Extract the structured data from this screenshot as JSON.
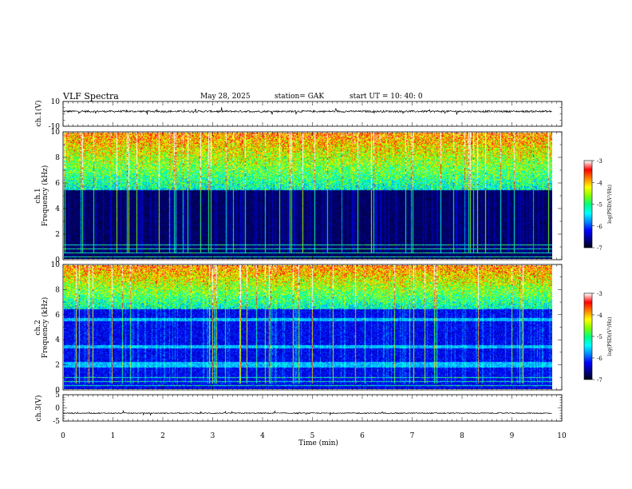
{
  "header": {
    "title": "VLF  Spectra",
    "date": "May 28, 2025",
    "station": "station= GAK",
    "start": "start  UT  =    10: 40: 0"
  },
  "chart_data": [
    {
      "type": "line",
      "name": "ch1-waveform",
      "ylabel": "ch.1(V)",
      "ylim": [
        -10,
        10
      ],
      "yticks": [
        "10",
        "-10"
      ],
      "xlim": [
        0,
        10
      ],
      "baseline": 2,
      "noise_amplitude": 1.5,
      "color": "#000000"
    },
    {
      "type": "heatmap",
      "name": "ch1-spectrogram",
      "ylabel": "ch.1\nFrequency  (kHz)",
      "ylim": [
        0,
        10
      ],
      "yticks": [
        "0",
        "2",
        "4",
        "6",
        "8",
        "10"
      ],
      "xlim": [
        0,
        9.8
      ],
      "noise_floor_khz": 5.5,
      "colorbar": {
        "label": "log(PSD)(V²/Hz)",
        "range": [
          -7,
          -3
        ],
        "ticks": [
          "-3",
          "-4",
          "-5",
          "-6",
          "-7"
        ]
      }
    },
    {
      "type": "heatmap",
      "name": "ch2-spectrogram",
      "ylabel": "ch.2\nFrequency  (kHz)",
      "ylim": [
        0,
        10
      ],
      "yticks": [
        "0",
        "2",
        "4",
        "6",
        "8",
        "10"
      ],
      "xlim": [
        0,
        9.8
      ],
      "noise_floor_khz": 6.5,
      "colorbar": {
        "label": "log(PSD)(V²/Hz)",
        "range": [
          -7,
          -3
        ],
        "ticks": [
          "-3",
          "-4",
          "-5",
          "-6",
          "-7"
        ]
      }
    },
    {
      "type": "line",
      "name": "ch3-waveform",
      "ylabel": "ch.3(V)",
      "ylim": [
        -5,
        5
      ],
      "yticks": [
        "5",
        "0",
        "-5"
      ],
      "xlim": [
        0,
        10
      ],
      "baseline": -2,
      "noise_amplitude": 0.4,
      "color": "#000000"
    }
  ],
  "xaxis": {
    "label": "Time  (min)",
    "ticks": [
      "0",
      "1",
      "2",
      "3",
      "4",
      "5",
      "6",
      "7",
      "8",
      "9",
      "10"
    ]
  },
  "colormap": [
    "#000010",
    "#00008b",
    "#0000ff",
    "#0088ff",
    "#00ffff",
    "#00ff80",
    "#80ff00",
    "#ffff00",
    "#ff8000",
    "#ff0000",
    "#ffffff"
  ]
}
